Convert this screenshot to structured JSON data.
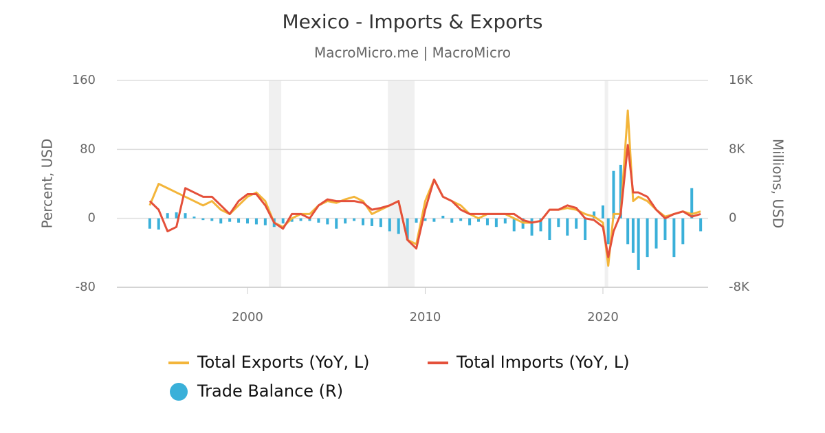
{
  "chart_data": {
    "type": "combo",
    "title": "Mexico - Imports & Exports",
    "subtitle": "MacroMicro.me | MacroMicro",
    "y_label": "Percent, USD",
    "y2_label": "Millions, USD",
    "xlim": [
      1992.65,
      2025.92
    ],
    "xticks": [
      2000,
      2010,
      2020
    ],
    "ylim": [
      -80,
      160
    ],
    "yticks": [
      -80,
      0,
      80,
      160
    ],
    "y2lim": [
      -8000,
      16000
    ],
    "y2ticks": [
      {
        "value": -8000,
        "label": "-8K"
      },
      {
        "value": 0,
        "label": "0"
      },
      {
        "value": 8000,
        "label": "8K"
      },
      {
        "value": 16000,
        "label": "16K"
      }
    ],
    "grid": true,
    "shaded_periods": [
      [
        2001.2,
        2001.9
      ],
      [
        2007.9,
        2009.4
      ],
      [
        2020.1,
        2020.3
      ]
    ],
    "x": [
      1994.5,
      1995.0,
      1995.5,
      1996.0,
      1996.5,
      1997.0,
      1997.5,
      1998.0,
      1998.5,
      1999.0,
      1999.5,
      2000.0,
      2000.5,
      2001.0,
      2001.5,
      2002.0,
      2002.5,
      2003.0,
      2003.5,
      2004.0,
      2004.5,
      2005.0,
      2005.5,
      2006.0,
      2006.5,
      2007.0,
      2007.5,
      2008.0,
      2008.5,
      2009.0,
      2009.5,
      2010.0,
      2010.5,
      2011.0,
      2011.5,
      2012.0,
      2012.5,
      2013.0,
      2013.5,
      2014.0,
      2014.5,
      2015.0,
      2015.5,
      2016.0,
      2016.5,
      2017.0,
      2017.5,
      2018.0,
      2018.5,
      2019.0,
      2019.5,
      2020.0,
      2020.3,
      2020.6,
      2021.0,
      2021.4,
      2021.7,
      2022.0,
      2022.5,
      2023.0,
      2023.5,
      2024.0,
      2024.5,
      2025.0,
      2025.5
    ],
    "series": [
      {
        "name": "Total Exports (YoY, L)",
        "type": "line",
        "axis": "y",
        "color": "#f3b53a",
        "values": [
          15,
          40,
          35,
          30,
          25,
          20,
          15,
          20,
          10,
          5,
          15,
          25,
          30,
          20,
          -5,
          -10,
          0,
          5,
          5,
          15,
          20,
          18,
          22,
          25,
          20,
          5,
          10,
          15,
          20,
          -25,
          -30,
          20,
          45,
          25,
          20,
          15,
          5,
          0,
          5,
          5,
          5,
          0,
          -5,
          -5,
          -3,
          10,
          10,
          12,
          10,
          5,
          2,
          -5,
          -55,
          5,
          5,
          125,
          20,
          25,
          20,
          10,
          2,
          5,
          8,
          5,
          8
        ]
      },
      {
        "name": "Total Imports (YoY, L)",
        "type": "line",
        "axis": "y",
        "color": "#e4503a",
        "values": [
          20,
          10,
          -15,
          -10,
          35,
          30,
          25,
          25,
          15,
          5,
          20,
          28,
          28,
          15,
          -5,
          -12,
          5,
          5,
          0,
          15,
          22,
          20,
          20,
          20,
          18,
          10,
          12,
          15,
          20,
          -25,
          -35,
          10,
          45,
          25,
          20,
          10,
          5,
          5,
          5,
          5,
          5,
          5,
          -2,
          -5,
          -3,
          10,
          10,
          15,
          12,
          0,
          -2,
          -10,
          -45,
          -15,
          5,
          85,
          30,
          30,
          25,
          10,
          0,
          5,
          8,
          2,
          5
        ]
      },
      {
        "name": "Trade Balance (R)",
        "type": "bar",
        "axis": "y2",
        "color": "#3ab0d9",
        "values": [
          -1200,
          -1300,
          600,
          700,
          600,
          200,
          -200,
          -300,
          -600,
          -400,
          -500,
          -600,
          -700,
          -800,
          -1000,
          -600,
          -400,
          -300,
          -300,
          -500,
          -700,
          -1200,
          -600,
          -300,
          -800,
          -900,
          -1000,
          -1500,
          -1800,
          -2500,
          -500,
          -300,
          -400,
          300,
          -500,
          -300,
          -800,
          -400,
          -800,
          -1000,
          -600,
          -1500,
          -1200,
          -2000,
          -1500,
          -2500,
          -1000,
          -2000,
          -1200,
          -2500,
          800,
          1500,
          -3000,
          5500,
          6200,
          -3000,
          -4000,
          -6000,
          -4500,
          -3500,
          -2500,
          -4500,
          -3000,
          3500,
          -1500
        ]
      }
    ]
  }
}
